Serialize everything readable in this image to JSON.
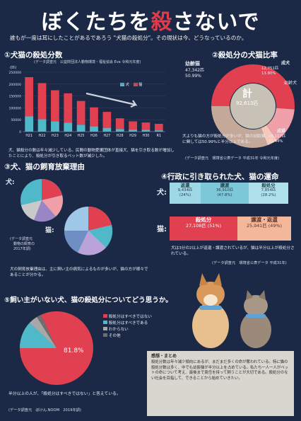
{
  "title": {
    "main_a": "ぼくたちを",
    "main_red": "殺",
    "main_b": "さないで"
  },
  "subtitle": "誰もが一度は耳にしたことがあるであろう \"犬猫の殺処分\"。その現状は今、どうなっているのか。",
  "sec1": {
    "heading": "①犬猫の殺処分数",
    "source": "(データ調査元　公益財団法人動物環境・福祉協会 Eva 令和元年度)",
    "legend_dog": "犬",
    "legend_cat": "猫",
    "yunit": "(匹)",
    "colors": {
      "dog": "#4fb8c9",
      "cat": "#e0404f"
    },
    "note": "犬、猫殺分の数は年々減少している。民間の動物愛護団体が直接犬、猫を引き取る数が増加したことにより、殺処分が引き取るペット数が減少した。"
  },
  "chart_data": {
    "type": "bar",
    "stacked": true,
    "categories": [
      "H21",
      "H22",
      "H23",
      "H24",
      "H25",
      "H26",
      "H27",
      "H28",
      "H29",
      "H30",
      "R1"
    ],
    "series": [
      {
        "name": "犬",
        "values": [
          64000,
          52000,
          43000,
          38000,
          29000,
          22000,
          16000,
          11000,
          8400,
          7700,
          5600
        ]
      },
      {
        "name": "猫",
        "values": [
          165000,
          152000,
          131000,
          123000,
          100000,
          80000,
          67000,
          45000,
          34800,
          30700,
          27100
        ]
      }
    ],
    "yticks": [
      "250000",
      "200000",
      "150000",
      "100000",
      "50000",
      "0"
    ],
    "ylim": [
      0,
      250000
    ]
  },
  "sec2": {
    "heading": "②殺処分の犬猫比率",
    "label_youki": "幼齢猫",
    "youki_values": "47,342匹\n50.99%",
    "label_seiken": "成犬",
    "seiken_values": "12,751匹\n13.80%",
    "label_youken": "幼齢犬",
    "label_seibyo": "成猫",
    "seibyo_values": "29,117匹\n31.44%",
    "center_label": "計",
    "center_value": "92,613匹",
    "note": "犬よりも猫の方が殺処分が多いが、猫の幼齢猫に関しては50.99%と半分以上である。",
    "source": "(データ調査元　環境省公表データ 平成31年 令和元年度)",
    "colors": {
      "youki": "#e0404f",
      "seiken": "#f0a0a8",
      "youken": "#f5c8b8",
      "seibyo": "#c4a89a"
    }
  },
  "sec3": {
    "heading": "③犬、猫の飼育放棄理由",
    "dog_label": "犬:",
    "cat_label": "猫:",
    "source": "(データ調査元\n　動物の飼育の\n　2017年調)",
    "note": "犬の飼育放棄理由は、主に飼い主の病気によるものが多いが、猫の方が様々であることが分かる。"
  },
  "sec4": {
    "heading": "④行政に引き取られた犬、猫の運命",
    "dog_label": "犬:",
    "cat_label": "猫:",
    "dog_boxes": [
      {
        "title": "返還",
        "value": "9,434匹\n(24%)"
      },
      {
        "title": "譲渡",
        "value": "36,910匹\n(47.8%)"
      },
      {
        "title": "殺処分",
        "value": "7,854匹\n(28.2%)"
      }
    ],
    "cat_boxes": [
      {
        "title": "殺処分",
        "value": "27,108匹 (51%)"
      },
      {
        "title": "譲渡・返還",
        "value": "25,941匹 (49%)"
      }
    ],
    "note": "犬は3分の2以上が返還・譲渡されているが、猫は半分以上が殺処分されている。",
    "source": "(データ調査元　環境省公表データ 平成31年)"
  },
  "sec5": {
    "heading": "⑤飼い主がいない犬、猫の殺処分についてどう思うか。",
    "legend": [
      "殺処分はすべきではない",
      "殺処分はすべきである",
      "わからない",
      "その他"
    ],
    "pie_label": "81.8%",
    "note": "半分以上の人が、「殺処分はすべきではない」と答えている。",
    "source": "(データ調査元　ぼけん.NOOM　2019年調)",
    "colors": [
      "#e0404f",
      "#4fb8c9",
      "#a8a8a8",
      "#6e6e6e"
    ]
  },
  "afterword": {
    "title": "感想・まとめ",
    "body": "殺処分数は年々減少傾向にあるが、まだまだ多くの命が奪われている。特に猫の殺処分数は多く、中でも幼齢猫が半分以上を占めている。私たち一人一人がペットの命について考え、最後まで責任を持って飼うことが大切である。殺処分のない社会を目指して、できることから始めていきたい。"
  }
}
